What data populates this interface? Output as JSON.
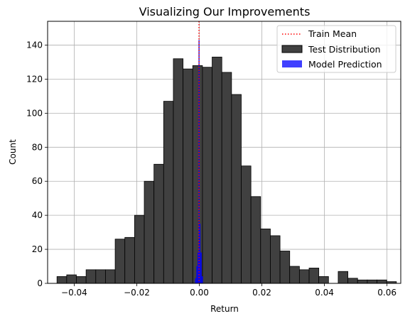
{
  "chart_data": {
    "type": "bar",
    "title": "Visualizing Our Improvements",
    "xlabel": "Return",
    "ylabel": "Count",
    "xlim": [
      -0.0485,
      0.0644
    ],
    "ylim": [
      0,
      154
    ],
    "grid": true,
    "legend_position": "top-right",
    "x_ticks": [
      -0.04,
      -0.02,
      0.0,
      0.02,
      0.04,
      0.06
    ],
    "x_tick_labels": [
      "−0.04",
      "−0.02",
      "0.00",
      "0.02",
      "0.04",
      "0.06"
    ],
    "y_ticks": [
      0,
      20,
      40,
      60,
      80,
      100,
      120,
      140
    ],
    "y_tick_labels": [
      "0",
      "20",
      "40",
      "60",
      "80",
      "100",
      "120",
      "140"
    ],
    "histogram": {
      "name": "Test Distribution",
      "color": "#404040",
      "edge_color": "#000000",
      "bin_start": -0.0455,
      "bin_width": 0.0031,
      "counts": [
        4,
        5,
        4,
        8,
        8,
        8,
        26,
        27,
        40,
        60,
        70,
        107,
        132,
        126,
        128,
        127,
        133,
        124,
        111,
        69,
        51,
        32,
        28,
        19,
        10,
        8,
        9,
        4,
        0,
        7,
        3,
        2,
        2,
        2,
        1
      ]
    },
    "prediction": {
      "name": "Model Prediction",
      "color": "#0000ff",
      "bins": [
        {
          "x0": -0.0013,
          "x1": -0.0009,
          "count": 3
        },
        {
          "x0": -0.0009,
          "x1": -0.0005,
          "count": 10
        },
        {
          "x0": -0.0005,
          "x1": -0.0001,
          "count": 18
        },
        {
          "x0": -0.0001,
          "x1": 0.0003,
          "count": 35
        },
        {
          "x0": 0.0003,
          "x1": 0.0007,
          "count": 18
        },
        {
          "x0": 0.0007,
          "x1": 0.0011,
          "count": 4
        }
      ],
      "spike_x": -0.0001,
      "spike_top": 143
    },
    "train_mean": {
      "name": "Train Mean",
      "color": "#ff0000",
      "x": -0.0001
    }
  }
}
